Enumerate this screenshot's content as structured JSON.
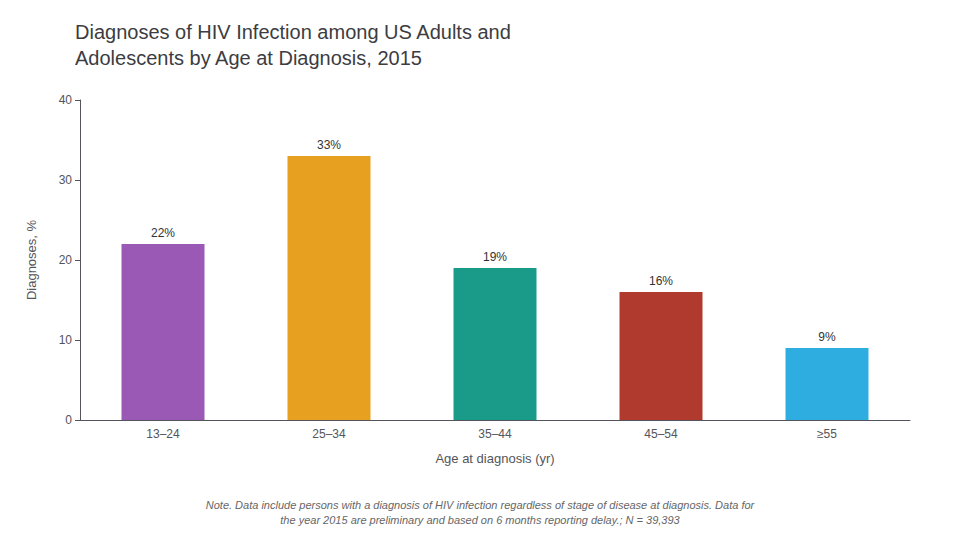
{
  "chart_data": {
    "type": "bar",
    "title": "Diagnoses of HIV Infection among US Adults and\nAdolescents by Age at Diagnosis, 2015",
    "x_label": "Age at diagnosis (yr)",
    "y_label": "Diagnoses, %",
    "categories": [
      "13–24",
      "25–34",
      "35–44",
      "45–54",
      "≥55"
    ],
    "values": [
      22,
      33,
      19,
      16,
      9
    ],
    "value_labels": [
      "22%",
      "33%",
      "19%",
      "16%",
      "9%"
    ],
    "data_labels": true,
    "colors": [
      "#9B59B6",
      "#E8A020",
      "#1A9B8A",
      "#B03A2E",
      "#2EAEE0"
    ],
    "ylim": [
      0,
      40
    ],
    "yticks": [
      0,
      10,
      20,
      30,
      40
    ],
    "grid": false,
    "annotations": [
      "Note. Data include persons with a diagnosis of HIV infection regardless of stage of disease at diagnosis. Data for\nthe year 2015 are preliminary and based on 6 months reporting delay.; N = 39,393"
    ]
  }
}
